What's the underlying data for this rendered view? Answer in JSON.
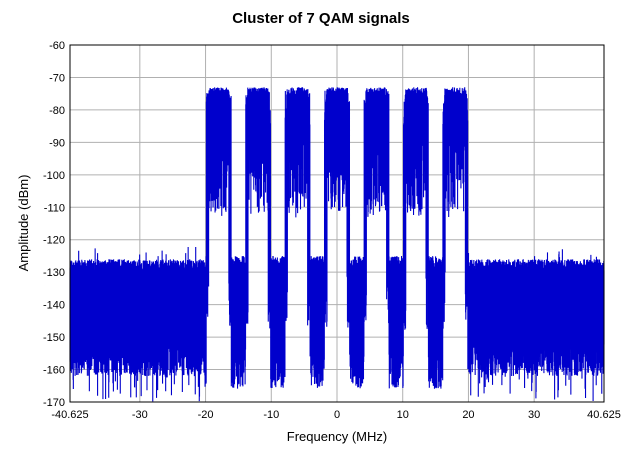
{
  "chart_data": {
    "type": "line",
    "title": "Cluster of 7 QAM signals",
    "xlabel": "Frequency (MHz)",
    "ylabel": "Amplitude (dBm)",
    "xlim": [
      -40.625,
      40.625
    ],
    "ylim": [
      -170,
      -60
    ],
    "x_ticks": [
      -40.625,
      -30,
      -20,
      -10,
      0,
      10,
      20,
      30,
      40.625
    ],
    "x_tick_labels": [
      "-40.625",
      "-30",
      "-20",
      "-10",
      "0",
      "10",
      "20",
      "30",
      "40.625"
    ],
    "y_ticks": [
      -60,
      -70,
      -80,
      -90,
      -100,
      -110,
      -120,
      -130,
      -140,
      -150,
      -160,
      -170
    ],
    "y_tick_labels": [
      "-60",
      "-70",
      "-80",
      "-90",
      "-100",
      "-110",
      "-120",
      "-130",
      "-140",
      "-150",
      "-160",
      "-170"
    ],
    "grid": true,
    "legend": "none",
    "series": [
      {
        "color": "#0000cc",
        "noise_floor_dbm": [
          -170,
          -125
        ],
        "carrier_centers_mhz": [
          -18,
          -12,
          -6,
          0,
          6,
          12,
          18
        ],
        "carrier_peak_dbm": -74,
        "carrier_span_mhz": [
          -20,
          20
        ]
      }
    ]
  },
  "colors": {
    "signal": "#0000cc",
    "grid": "#b0b0b0",
    "frame": "#000000",
    "plot_background": "#ffffff"
  }
}
